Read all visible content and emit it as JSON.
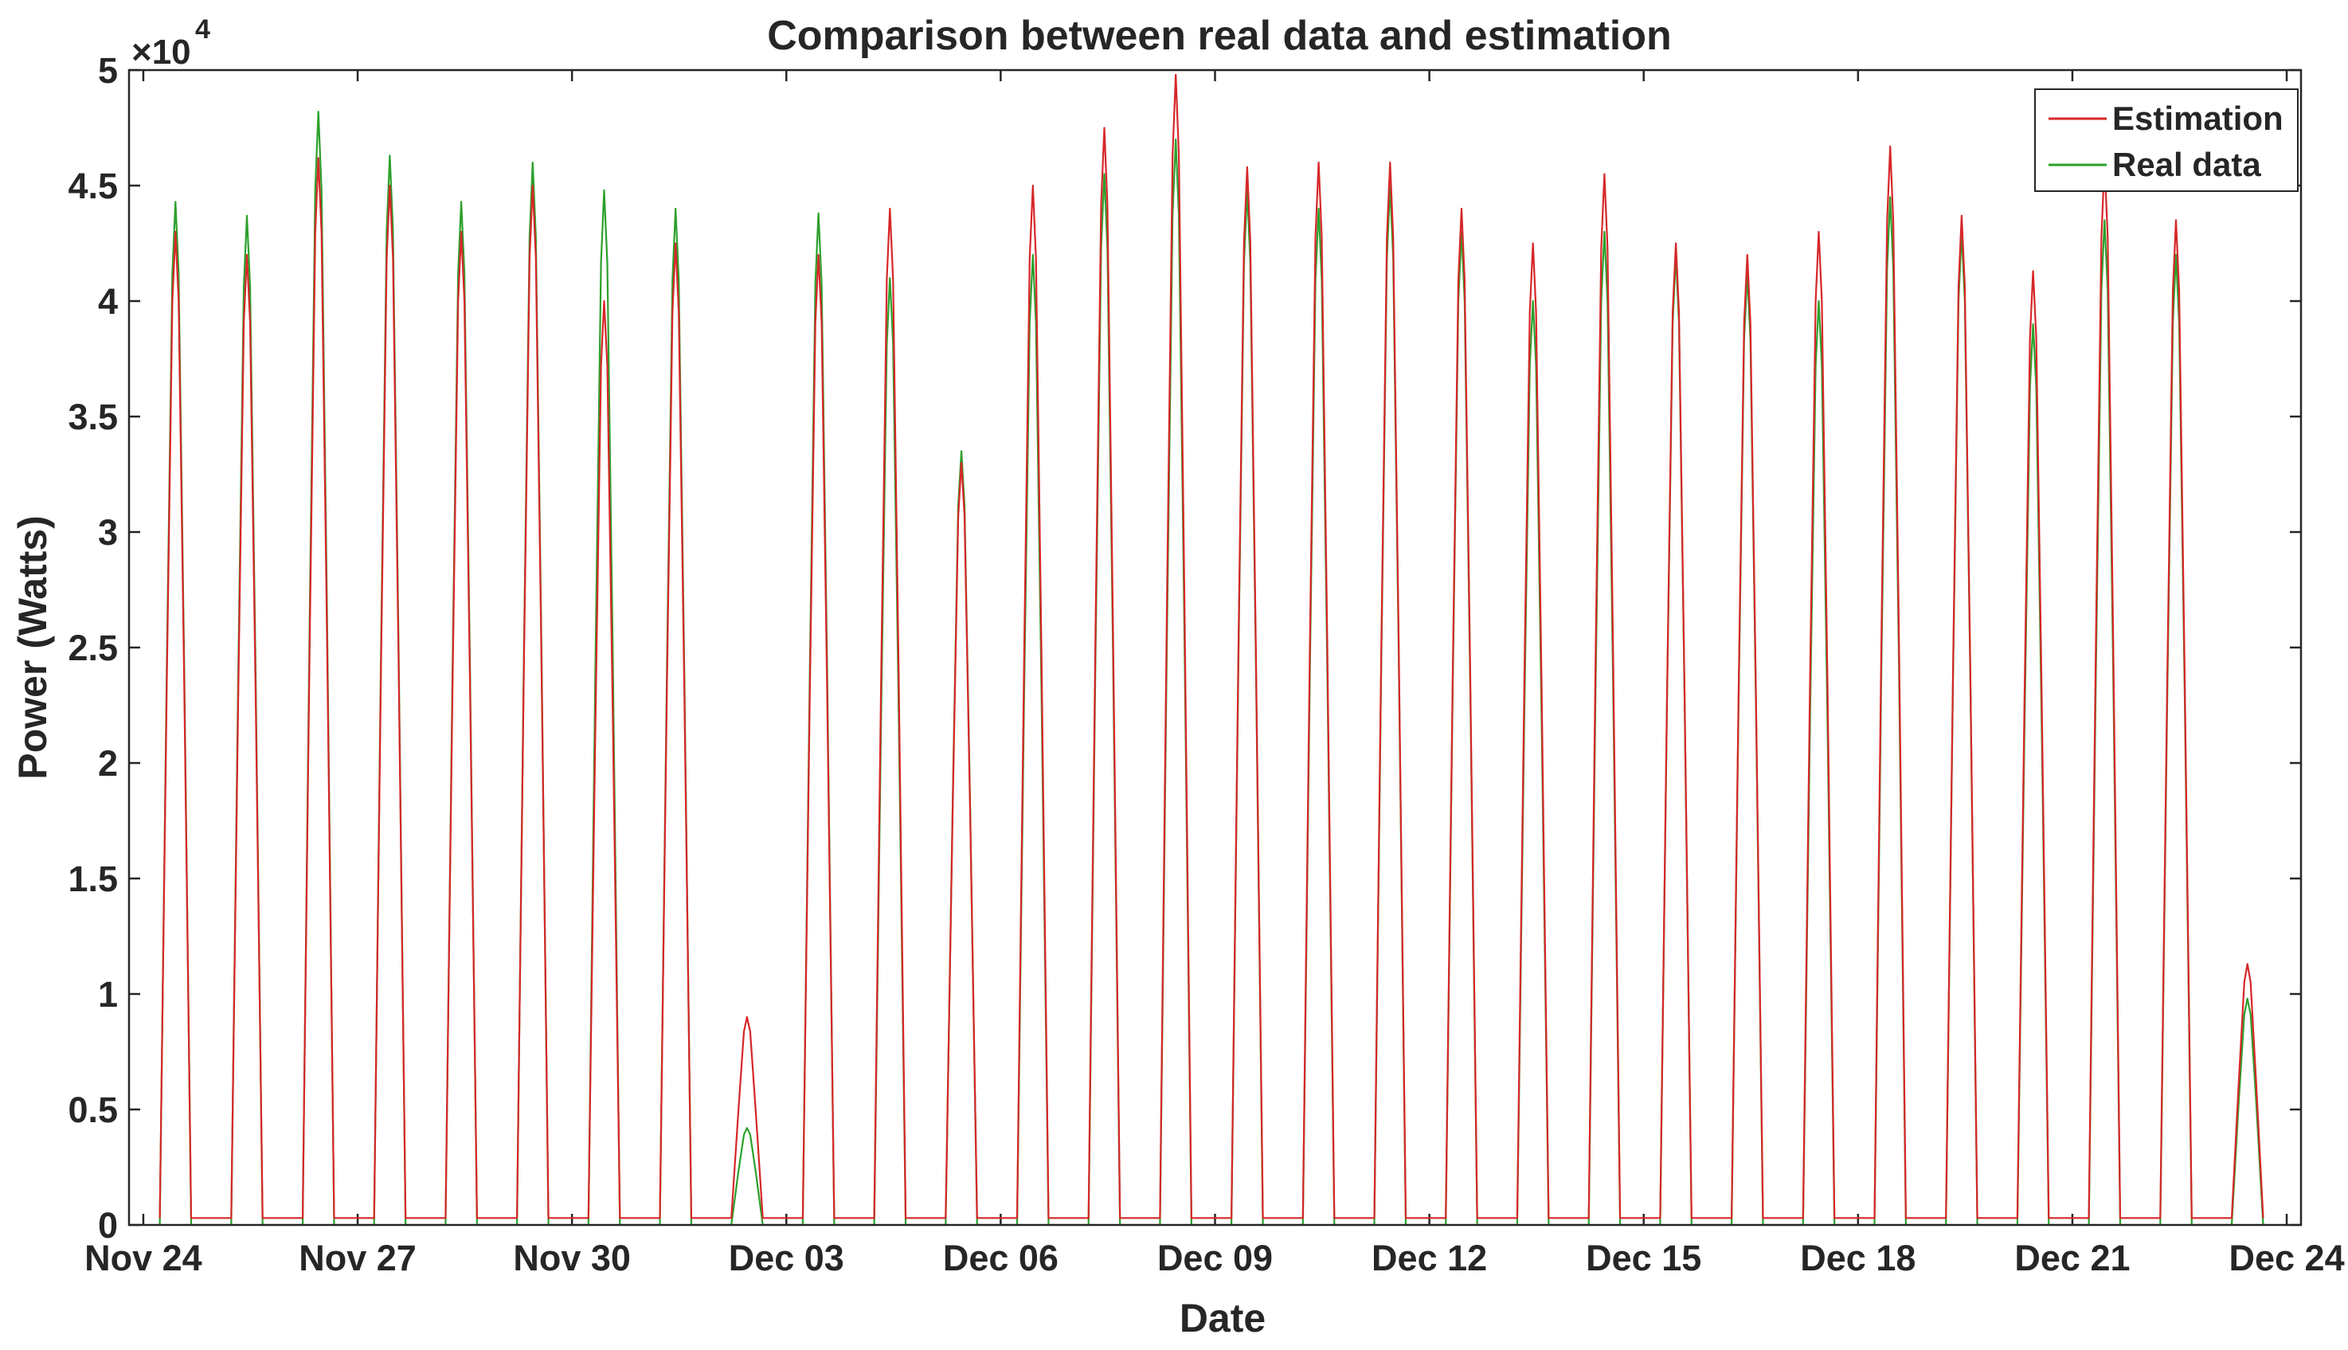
{
  "chart_data": {
    "type": "line",
    "title": "Comparison between real data and estimation",
    "xlabel": "Date",
    "ylabel": "Power (Watts)",
    "y_exponent_label": "×10",
    "y_exponent_power": "4",
    "xlim_days": [
      -0.2,
      30.2
    ],
    "ylim": [
      0,
      5
    ],
    "y_ticks": [
      0,
      0.5,
      1,
      1.5,
      2,
      2.5,
      3,
      3.5,
      4,
      4.5,
      5
    ],
    "y_tick_labels": [
      "0",
      "0.5",
      "1",
      "1.5",
      "2",
      "2.5",
      "3",
      "3.5",
      "4",
      "4.5",
      "5"
    ],
    "x_ticks": [
      0,
      3,
      6,
      9,
      12,
      15,
      18,
      21,
      24,
      27,
      30
    ],
    "x_tick_labels": [
      "Nov 24",
      "Nov 27",
      "Nov 30",
      "Dec 03",
      "Dec 06",
      "Dec 09",
      "Dec 12",
      "Dec 15",
      "Dec 18",
      "Dec 21",
      "Dec 24"
    ],
    "legend": {
      "position": "top-right",
      "entries": [
        {
          "label": "Estimation",
          "color": "#d62728"
        },
        {
          "label": "Real data",
          "color": "#2ca02c"
        }
      ]
    },
    "daily_peaks": {
      "day_offset": [
        0.45,
        1.45,
        2.45,
        3.45,
        4.45,
        5.45,
        6.45,
        7.45,
        8.45,
        9.45,
        10.45,
        11.45,
        12.45,
        13.45,
        14.45,
        15.45,
        16.45,
        17.45,
        18.45,
        19.45,
        20.45,
        21.45,
        22.45,
        23.45,
        24.45,
        25.45,
        26.45,
        27.45,
        28.45,
        29.45
      ],
      "estimation": [
        4.3,
        4.2,
        4.62,
        4.5,
        4.3,
        4.5,
        4.0,
        4.25,
        0.9,
        4.2,
        4.4,
        3.3,
        4.5,
        4.75,
        4.98,
        4.58,
        4.6,
        4.6,
        4.4,
        4.25,
        4.55,
        4.25,
        4.2,
        4.3,
        4.67,
        4.37,
        4.13,
        4.6,
        4.35,
        1.13
      ],
      "real": [
        4.43,
        4.37,
        4.82,
        4.63,
        4.43,
        4.6,
        4.48,
        4.4,
        0.42,
        4.38,
        4.1,
        3.35,
        4.2,
        4.55,
        4.7,
        4.48,
        4.4,
        4.5,
        4.3,
        4.0,
        4.3,
        4.2,
        4.12,
        4.0,
        4.45,
        4.3,
        3.9,
        4.35,
        4.2,
        0.98
      ],
      "night_floor_estimation": 0.03,
      "night_floor_real": 0.0
    }
  }
}
